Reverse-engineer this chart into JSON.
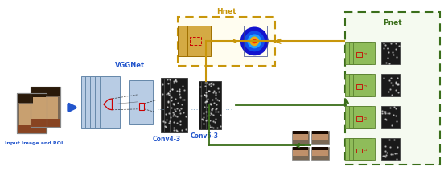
{
  "bg_color": "#ffffff",
  "blue_arrow_color": "#2255cc",
  "light_blue_layer": "#b8cce4",
  "light_blue_edge": "#6688aa",
  "dark_layer": "#1a1a1a",
  "dark_layer_edge": "#444444",
  "gold": "#c8960a",
  "gold_layer": "#d4aa44",
  "gold_edge": "#a07000",
  "green_dark": "#3a6e1a",
  "light_green": "#8fbc5a",
  "light_green_edge": "#5a8030",
  "label_blue": "#2255cc",
  "red": "#cc0000",
  "input_label": "Input Image and ROI",
  "vgg_label": "VGGNet",
  "conv4_label": "Conv4-3",
  "conv5_label": "Conv5-3",
  "hnet_label": "Hnet",
  "pnet_label": "Pnet",
  "dots_color": "#88aacc"
}
